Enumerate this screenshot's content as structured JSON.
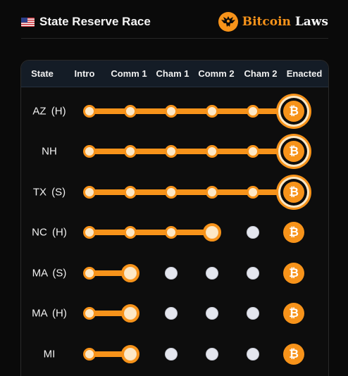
{
  "header": {
    "flag_icon": "us-flag-icon",
    "title": "State Reserve Race",
    "brand_icon": "eagle-icon",
    "brand_word1": "Bitcoin",
    "brand_word2": "Laws"
  },
  "colors": {
    "accent": "#f7931a",
    "pending": "#e4e6ee",
    "background": "#0a0a0a",
    "header_row": "#141c26"
  },
  "table": {
    "columns": [
      "State",
      "Intro",
      "Comm 1",
      "Cham 1",
      "Comm 2",
      "Cham 2",
      "Enacted"
    ],
    "bitcoin_symbol": "₿",
    "rows": [
      {
        "state": "AZ (H)",
        "stage": 5,
        "enacted": true
      },
      {
        "state": "NH",
        "stage": 5,
        "enacted": true
      },
      {
        "state": "TX (S)",
        "stage": 5,
        "enacted": true
      },
      {
        "state": "NC (H)",
        "stage": 3,
        "enacted": false
      },
      {
        "state": "MA (S)",
        "stage": 1,
        "enacted": false
      },
      {
        "state": "MA (H)",
        "stage": 1,
        "enacted": false
      },
      {
        "state": "MI",
        "stage": 1,
        "enacted": false
      }
    ]
  }
}
